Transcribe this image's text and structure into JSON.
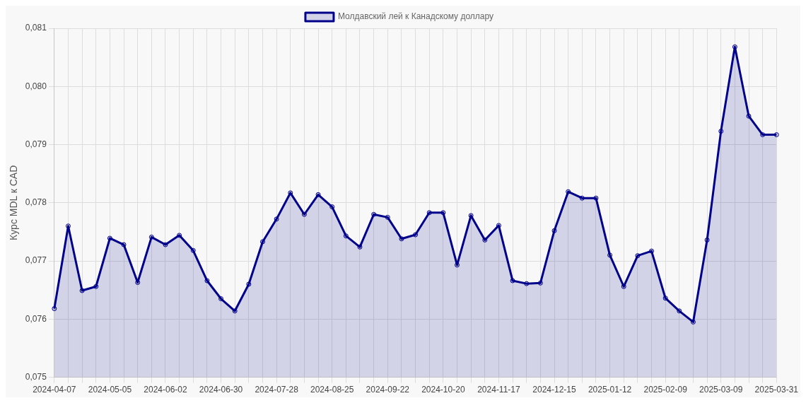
{
  "chart_data": {
    "type": "area",
    "ylabel": "Курс MDL к CAD",
    "legend": "top",
    "grid": true,
    "marker": "circle",
    "line_style": "solid",
    "categories": [
      "2024-04-07",
      null,
      null,
      null,
      "2024-05-05",
      null,
      null,
      null,
      "2024-06-02",
      null,
      null,
      null,
      "2024-06-30",
      null,
      null,
      null,
      "2024-07-28",
      null,
      null,
      null,
      "2024-08-25",
      null,
      null,
      null,
      "2024-09-22",
      null,
      null,
      null,
      "2024-10-20",
      null,
      null,
      null,
      "2024-11-17",
      null,
      null,
      null,
      "2024-12-15",
      null,
      null,
      null,
      "2025-01-12",
      null,
      null,
      null,
      "2025-02-09",
      null,
      null,
      null,
      "2025-03-09",
      null,
      null,
      null,
      "2025-03-31"
    ],
    "ylim": [
      0.075,
      0.081
    ],
    "yticks": [
      {
        "value": 0.075,
        "label": "0,075"
      },
      {
        "value": 0.076,
        "label": "0,076"
      },
      {
        "value": 0.077,
        "label": "0,077"
      },
      {
        "value": 0.078,
        "label": "0,078"
      },
      {
        "value": 0.079,
        "label": "0,079"
      },
      {
        "value": 0.08,
        "label": "0,080"
      },
      {
        "value": 0.081,
        "label": "0,081"
      }
    ],
    "series": [
      {
        "name": "Молдавский лей к Канадскому доллару",
        "color": "#00008b",
        "values": [
          0.07618,
          0.0776,
          0.07649,
          0.07656,
          0.07739,
          0.07728,
          0.07663,
          0.07741,
          0.07728,
          0.07744,
          0.07718,
          0.07666,
          0.07635,
          0.07614,
          0.0766,
          0.07733,
          0.07772,
          0.07817,
          0.0778,
          0.07814,
          0.07793,
          0.07743,
          0.07724,
          0.0778,
          0.07775,
          0.07738,
          0.07745,
          0.07783,
          0.07783,
          0.07693,
          0.07778,
          0.07736,
          0.07761,
          0.07666,
          0.07661,
          0.07662,
          0.07752,
          0.07819,
          0.07808,
          0.07808,
          0.0771,
          0.07656,
          0.07709,
          0.07717,
          0.07636,
          0.07614,
          0.07595,
          0.07736,
          0.07923,
          0.08068,
          0.07949,
          0.07917,
          0.07917
        ]
      }
    ]
  }
}
